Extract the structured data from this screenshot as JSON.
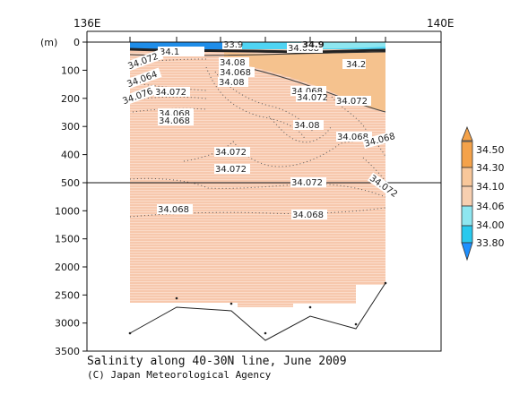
{
  "chart_data": {
    "type": "contour_section",
    "title": "Salinity along 40-30N line, June 2009",
    "credit": "(C) Japan Meteorological Agency",
    "x_axis": {
      "labels": [
        "136E",
        "140E"
      ],
      "range": [
        136,
        140
      ]
    },
    "y_axis": {
      "unit": "(m)",
      "upper_ticks": [
        0,
        100,
        200,
        300,
        400,
        500
      ],
      "lower_ticks": [
        1000,
        1500,
        2000,
        2500,
        3000,
        3500
      ],
      "break_depth": 500,
      "inverted": true
    },
    "colorbar": {
      "levels": [
        "34.50",
        "34.30",
        "34.10",
        "34.06",
        "34.00",
        "33.80"
      ],
      "colors": [
        "#f4a24a",
        "#f8c79a",
        "#f7cfb0",
        "#8ee6f0",
        "#29c9ee",
        "#1e90ff"
      ]
    },
    "contour_labels": [
      "34.1",
      "33.9",
      "34.072",
      "34.08",
      "34.068",
      "34.2",
      "34.064",
      "34.072",
      "34.076",
      "34.08",
      "34.068",
      "34.072",
      "34.068",
      "34.068",
      "34.072",
      "34.08",
      "34.072",
      "34.068",
      "34.068",
      "34.072",
      "34.072",
      "34.072",
      "34.068",
      "34.068",
      "34.068",
      "34.9"
    ],
    "bottom_profile_m": [
      3150,
      2700,
      2780,
      3320,
      2820,
      3120,
      2330
    ]
  }
}
